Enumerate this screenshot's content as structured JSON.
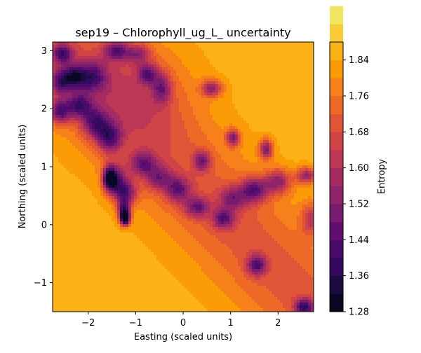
{
  "chart_data": {
    "type": "heatmap",
    "title": "sep19 – Chlorophyll_ug_L_ uncertainty",
    "xlabel": "Easting (scaled units)",
    "ylabel": "Northing (scaled units)",
    "xlim": [
      -2.75,
      2.75
    ],
    "ylim": [
      -1.5,
      3.15
    ],
    "x_ticks": [
      -2,
      -1,
      0,
      1,
      2
    ],
    "y_ticks": [
      -1,
      0,
      1,
      2,
      3
    ],
    "x_tick_labels": [
      "−2",
      "−1",
      "0",
      "1",
      "2"
    ],
    "y_tick_labels": [
      "−1",
      "0",
      "1",
      "2",
      "3"
    ],
    "colorbar": {
      "label": "Entropy",
      "min": 1.28,
      "max": 1.88,
      "step": 0.04,
      "ticks": [
        1.28,
        1.36,
        1.44,
        1.52,
        1.6,
        1.68,
        1.76,
        1.84
      ],
      "tick_labels": [
        "1.28",
        "1.36",
        "1.44",
        "1.52",
        "1.60",
        "1.68",
        "1.76",
        "1.84"
      ],
      "colors": [
        "#0a0722",
        "#1d0c42",
        "#340a5f",
        "#4a0c6b",
        "#610f6e",
        "#781c6d",
        "#8f2469",
        "#a52c60",
        "#bb3754",
        "#cf4446",
        "#e05536",
        "#ed6925",
        "#f6801a",
        "#fb9b06",
        "#fcb216",
        "#f8cc37",
        "#f2e661"
      ]
    },
    "contours": {
      "baseline": 1.86,
      "floor": 1.28,
      "troughs": [
        {
          "x": -2.55,
          "y": 2.95,
          "depth": 0.3,
          "sx": 0.15,
          "sy": 0.12
        },
        {
          "x": -2.6,
          "y": 2.45,
          "depth": 0.26,
          "sx": 0.15,
          "sy": 0.15
        },
        {
          "x": -2.3,
          "y": 2.55,
          "depth": 0.33,
          "sx": 0.18,
          "sy": 0.15
        },
        {
          "x": -1.9,
          "y": 2.55,
          "depth": 0.25,
          "sx": 0.2,
          "sy": 0.18
        },
        {
          "x": -1.4,
          "y": 3.0,
          "depth": 0.28,
          "sx": 0.18,
          "sy": 0.12
        },
        {
          "x": -0.95,
          "y": 2.95,
          "depth": 0.2,
          "sx": 0.18,
          "sy": 0.12
        },
        {
          "x": -2.6,
          "y": 1.95,
          "depth": 0.32,
          "sx": 0.15,
          "sy": 0.15
        },
        {
          "x": -2.2,
          "y": 2.05,
          "depth": 0.3,
          "sx": 0.2,
          "sy": 0.15
        },
        {
          "x": -1.85,
          "y": 1.75,
          "depth": 0.28,
          "sx": 0.2,
          "sy": 0.18
        },
        {
          "x": -1.55,
          "y": 1.5,
          "depth": 0.3,
          "sx": 0.18,
          "sy": 0.18
        },
        {
          "x": -1.55,
          "y": 0.8,
          "depth": 0.47,
          "sx": 0.1,
          "sy": 0.14
        },
        {
          "x": -1.4,
          "y": 0.75,
          "depth": 0.28,
          "sx": 0.16,
          "sy": 0.2
        },
        {
          "x": -1.2,
          "y": 0.55,
          "depth": 0.3,
          "sx": 0.16,
          "sy": 0.15
        },
        {
          "x": -1.25,
          "y": 0.25,
          "depth": 0.4,
          "sx": 0.09,
          "sy": 0.12
        },
        {
          "x": -1.22,
          "y": 0.1,
          "depth": 0.56,
          "sx": 0.07,
          "sy": 0.08
        },
        {
          "x": -0.85,
          "y": 1.05,
          "depth": 0.26,
          "sx": 0.2,
          "sy": 0.15
        },
        {
          "x": -0.5,
          "y": 0.8,
          "depth": 0.22,
          "sx": 0.2,
          "sy": 0.15
        },
        {
          "x": -0.1,
          "y": 0.6,
          "depth": 0.26,
          "sx": 0.18,
          "sy": 0.15
        },
        {
          "x": 0.3,
          "y": 0.3,
          "depth": 0.25,
          "sx": 0.18,
          "sy": 0.12
        },
        {
          "x": 0.85,
          "y": 0.1,
          "depth": 0.26,
          "sx": 0.16,
          "sy": 0.12
        },
        {
          "x": -0.75,
          "y": 2.6,
          "depth": 0.27,
          "sx": 0.14,
          "sy": 0.12
        },
        {
          "x": -0.45,
          "y": 2.35,
          "depth": 0.23,
          "sx": 0.14,
          "sy": 0.18
        },
        {
          "x": 0.6,
          "y": 2.35,
          "depth": 0.3,
          "sx": 0.15,
          "sy": 0.1
        },
        {
          "x": 0.4,
          "y": 1.1,
          "depth": 0.25,
          "sx": 0.12,
          "sy": 0.12
        },
        {
          "x": 1.05,
          "y": 1.5,
          "depth": 0.32,
          "sx": 0.1,
          "sy": 0.1
        },
        {
          "x": 1.75,
          "y": 1.3,
          "depth": 0.33,
          "sx": 0.1,
          "sy": 0.12
        },
        {
          "x": 1.5,
          "y": 0.6,
          "depth": 0.32,
          "sx": 0.2,
          "sy": 0.15
        },
        {
          "x": 2.0,
          "y": 0.75,
          "depth": 0.28,
          "sx": 0.2,
          "sy": 0.15
        },
        {
          "x": 2.6,
          "y": 0.85,
          "depth": 0.3,
          "sx": 0.15,
          "sy": 0.1
        },
        {
          "x": 1.05,
          "y": 0.45,
          "depth": 0.22,
          "sx": 0.2,
          "sy": 0.15
        },
        {
          "x": 1.55,
          "y": -0.7,
          "depth": 0.3,
          "sx": 0.14,
          "sy": 0.12
        },
        {
          "x": 2.55,
          "y": -1.42,
          "depth": 0.34,
          "sx": 0.14,
          "sy": 0.1
        },
        {
          "x": 2.7,
          "y": 0.1,
          "depth": 0.2,
          "sx": 0.15,
          "sy": 0.2
        }
      ]
    }
  }
}
